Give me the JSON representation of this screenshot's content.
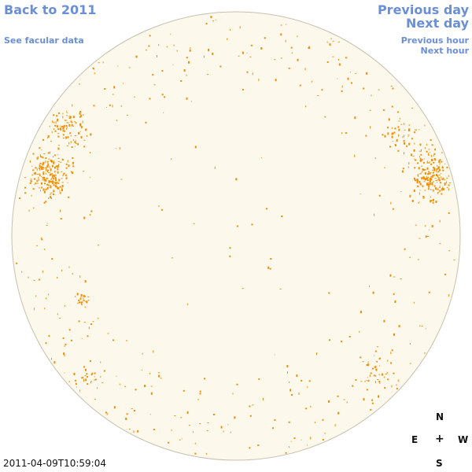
{
  "nav": {
    "back": "Back to 2011",
    "facular": "See facular data",
    "prev_day": "Previous day",
    "next_day": "Next day",
    "prev_hour": "Previous hour",
    "next_hour": "Next hour"
  },
  "compass": {
    "n": "N",
    "s": "S",
    "e": "E",
    "w": "W",
    "center": "+"
  },
  "timestamp": "2011-04-09T10:59:04",
  "colors": {
    "link": "#6b8fd6",
    "disk_fill": "#fdf8ec",
    "disk_stroke": "#c8c0ae",
    "activity": "#f0900a"
  },
  "image": {
    "type": "solar-disk-magnetogram",
    "active_regions": [
      {
        "name": "northeast-limb-cluster",
        "position": "upper-left"
      },
      {
        "name": "northwest-limb-cluster",
        "position": "upper-right"
      },
      {
        "name": "east-small-cluster",
        "position": "left"
      }
    ]
  }
}
